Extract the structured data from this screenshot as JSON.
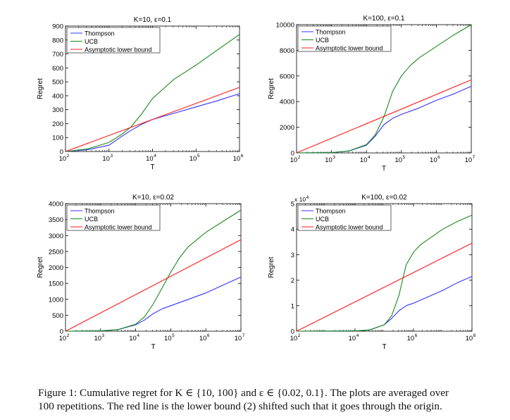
{
  "figure": {
    "caption_line1": "Figure 1: Cumulative regret for K ∈ {10, 100} and ε ∈ {0.02, 0.1}. The plots are averaged over",
    "caption_line2": "100 repetitions. The red line is the lower bound (2) shifted such that it goes through the origin."
  },
  "colors": {
    "thompson": "#3333ff",
    "ucb": "#1a8a1a",
    "bound": "#ff1a1a"
  },
  "chart_data": [
    {
      "type": "line",
      "title": "K=10, ε=0.1",
      "xlabel": "T",
      "ylabel": "Regret",
      "xscale": "log",
      "xlim_exp": [
        2,
        6
      ],
      "xtick_exps": [
        2,
        3,
        4,
        5,
        6
      ],
      "ylim": [
        0,
        900
      ],
      "yticks": [
        0,
        100,
        200,
        300,
        400,
        500,
        600,
        700,
        800,
        900
      ],
      "legend_position": "top-left",
      "series": [
        {
          "name": "Thompson",
          "color": "#3333ff",
          "log10_x": [
            2,
            2.5,
            3,
            3.3,
            3.5,
            3.75,
            4,
            4.5,
            5,
            5.5,
            6
          ],
          "y": [
            0,
            12,
            45,
            110,
            150,
            195,
            230,
            275,
            320,
            365,
            415
          ]
        },
        {
          "name": "UCB",
          "color": "#1a8a1a",
          "log10_x": [
            2,
            2.5,
            3,
            3.3,
            3.5,
            3.75,
            4,
            4.25,
            4.5,
            5,
            5.5,
            6
          ],
          "y": [
            0,
            18,
            65,
            125,
            175,
            270,
            380,
            450,
            520,
            620,
            730,
            840
          ]
        },
        {
          "name": "Asymptotic lower bound",
          "color": "#ff1a1a",
          "log10_x": [
            2,
            6
          ],
          "y": [
            0,
            460
          ]
        }
      ]
    },
    {
      "type": "line",
      "title": "K=100, ε=0.1",
      "xlabel": "T",
      "ylabel": "Regret",
      "xscale": "log",
      "xlim_exp": [
        2,
        7
      ],
      "xtick_exps": [
        2,
        3,
        4,
        5,
        6,
        7
      ],
      "ylim": [
        0,
        10000
      ],
      "yticks": [
        0,
        2000,
        4000,
        6000,
        8000,
        10000
      ],
      "legend_position": "top-left",
      "series": [
        {
          "name": "Thompson",
          "color": "#3333ff",
          "log10_x": [
            2,
            3,
            3.5,
            4,
            4.25,
            4.5,
            4.75,
            5,
            5.5,
            6,
            6.5,
            7
          ],
          "y": [
            0,
            20,
            150,
            600,
            1300,
            2200,
            2700,
            3000,
            3500,
            4100,
            4600,
            5200
          ]
        },
        {
          "name": "UCB",
          "color": "#1a8a1a",
          "log10_x": [
            2,
            3,
            3.5,
            4,
            4.25,
            4.5,
            4.75,
            5,
            5.25,
            5.5,
            6,
            6.5,
            7
          ],
          "y": [
            0,
            20,
            160,
            650,
            1400,
            2800,
            4800,
            6000,
            6800,
            7400,
            8300,
            9200,
            10000
          ]
        },
        {
          "name": "Asymptotic lower bound",
          "color": "#ff1a1a",
          "log10_x": [
            2,
            7
          ],
          "y": [
            0,
            5700
          ]
        }
      ]
    },
    {
      "type": "line",
      "title": "K=10, ε=0.02",
      "xlabel": "T",
      "ylabel": "Regret",
      "xscale": "log",
      "xlim_exp": [
        2,
        7
      ],
      "xtick_exps": [
        2,
        3,
        4,
        5,
        6,
        7
      ],
      "ylim": [
        0,
        4000
      ],
      "yticks": [
        0,
        500,
        1000,
        1500,
        2000,
        2500,
        3000,
        3500,
        4000
      ],
      "legend_position": "top-left",
      "series": [
        {
          "name": "Thompson",
          "color": "#3333ff",
          "log10_x": [
            2,
            3,
            3.5,
            4,
            4.25,
            4.5,
            4.75,
            5,
            5.5,
            6,
            6.5,
            7
          ],
          "y": [
            0,
            10,
            50,
            200,
            350,
            550,
            700,
            800,
            1000,
            1200,
            1450,
            1700
          ]
        },
        {
          "name": "UCB",
          "color": "#1a8a1a",
          "log10_x": [
            2,
            3,
            3.5,
            4,
            4.25,
            4.5,
            4.75,
            5,
            5.25,
            5.5,
            6,
            6.5,
            7
          ],
          "y": [
            0,
            10,
            50,
            220,
            450,
            850,
            1350,
            1850,
            2300,
            2650,
            3100,
            3450,
            3800
          ]
        },
        {
          "name": "Asymptotic lower bound",
          "color": "#ff1a1a",
          "log10_x": [
            2,
            7
          ],
          "y": [
            0,
            2870
          ]
        }
      ]
    },
    {
      "type": "line",
      "title": "K=100, ε=0.02",
      "xlabel": "T",
      "ylabel": "Regret",
      "xscale": "log",
      "xlim_exp": [
        2,
        8
      ],
      "xtick_exps": [
        2,
        4,
        6,
        8
      ],
      "ylim": [
        0,
        5
      ],
      "yticks": [
        0,
        1,
        2,
        3,
        4,
        5
      ],
      "y_multiplier": "x 10",
      "y_multiplier_exp": "4",
      "legend_position": "top-left",
      "series": [
        {
          "name": "Thompson",
          "color": "#3333ff",
          "log10_x": [
            2,
            4,
            4.5,
            5,
            5.25,
            5.5,
            5.75,
            6,
            6.5,
            7,
            7.5,
            8
          ],
          "y": [
            0,
            0.01,
            0.05,
            0.25,
            0.5,
            0.8,
            1.0,
            1.1,
            1.35,
            1.6,
            1.9,
            2.15
          ]
        },
        {
          "name": "UCB",
          "color": "#1a8a1a",
          "log10_x": [
            2,
            4,
            4.5,
            5,
            5.25,
            5.5,
            5.75,
            6,
            6.25,
            6.5,
            7,
            7.5,
            8
          ],
          "y": [
            0,
            0.01,
            0.05,
            0.25,
            0.6,
            1.4,
            2.6,
            3.1,
            3.4,
            3.6,
            4.0,
            4.3,
            4.55
          ]
        },
        {
          "name": "Asymptotic lower bound",
          "color": "#ff1a1a",
          "log10_x": [
            2,
            8
          ],
          "y": [
            0,
            3.45
          ]
        }
      ]
    }
  ]
}
